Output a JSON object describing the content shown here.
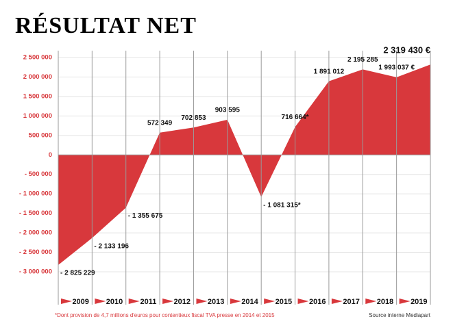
{
  "chart_data": {
    "type": "area",
    "title": "RÉSULTAT NET",
    "categories": [
      null,
      "2009",
      "2010",
      "2011",
      "2012",
      "2013",
      "2014",
      "2015",
      "2016",
      "2017",
      "2018",
      "2019"
    ],
    "values": [
      -2825229,
      -2133196,
      -1355675,
      572349,
      702853,
      903595,
      -1081315,
      716664,
      1891012,
      2195285,
      1993037,
      2319430
    ],
    "value_labels": [
      "- 2 825 229",
      "- 2 133 196",
      "- 1 355 675",
      "572 349",
      "702 853",
      "903 595",
      "- 1 081 315*",
      "716 664*",
      "1 891 012",
      "2 195 285",
      "1 993 037 €",
      "2 319 430 €"
    ],
    "color": "#d8383c",
    "ylim": [
      -3000000,
      2500000
    ],
    "yticks": [
      {
        "value": -3000000,
        "label": "- 3 000 000"
      },
      {
        "value": -2500000,
        "label": "- 2 500 000"
      },
      {
        "value": -2000000,
        "label": "- 2 000 000"
      },
      {
        "value": -1500000,
        "label": "- 1 500 000"
      },
      {
        "value": -1000000,
        "label": "- 1 000 000"
      },
      {
        "value": -500000,
        "label": "- 500 000"
      },
      0,
      {
        "value": 500000,
        "label": "500 000"
      },
      {
        "value": 1000000,
        "label": "1 000 000"
      },
      {
        "value": 1500000,
        "label": "1 500 000"
      },
      {
        "value": 2000000,
        "label": "2 000 000"
      },
      {
        "value": 2500000,
        "label": "2 500 000"
      }
    ],
    "grid": true,
    "note": "*Dont provision de 4,7 millions d'euros pour contentieux fiscal TVA presse en 2014 et 2015",
    "source": "Source interne Mediapart"
  }
}
